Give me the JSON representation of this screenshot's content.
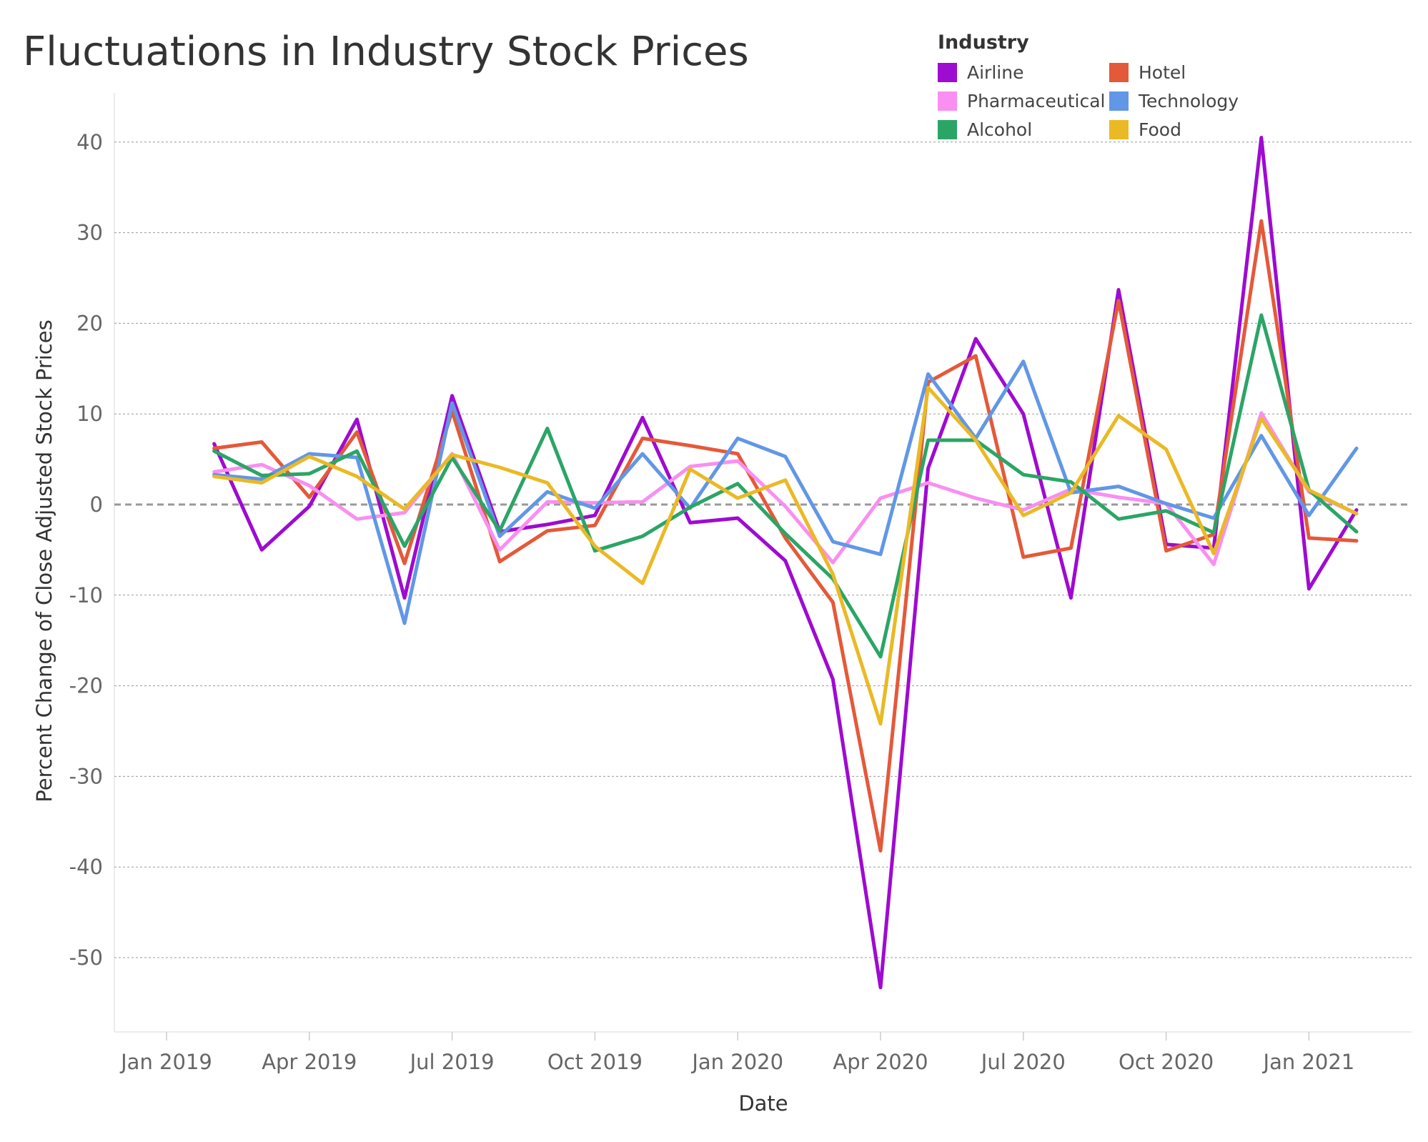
{
  "chart_data": {
    "type": "line",
    "title": "Fluctuations in Industry Stock Prices",
    "xlabel": "Date",
    "ylabel": "Percent Change of Close Adjusted Stock Prices",
    "ylim": [
      -58,
      46
    ],
    "yticks": [
      40,
      30,
      20,
      10,
      0,
      -10,
      -20,
      -30,
      -40,
      -50
    ],
    "x_ticks": [
      "Jan 2019",
      "Apr 2019",
      "Jul 2019",
      "Oct 2019",
      "Jan 2020",
      "Apr 2020",
      "Jul 2020",
      "Oct 2020",
      "Jan 2021"
    ],
    "x": [
      "2019-02",
      "2019-03",
      "2019-04",
      "2019-05",
      "2019-06",
      "2019-07",
      "2019-08",
      "2019-09",
      "2019-10",
      "2019-11",
      "2019-12",
      "2020-01",
      "2020-02",
      "2020-03",
      "2020-04",
      "2020-05",
      "2020-06",
      "2020-07",
      "2020-08",
      "2020-09",
      "2020-10",
      "2020-11",
      "2020-12",
      "2021-01",
      "2021-02"
    ],
    "legend_title": "Industry",
    "legend_position": "top-right",
    "grid": true,
    "zero_line": true,
    "series": [
      {
        "name": "Airline",
        "color": "#9e0bd1",
        "values": [
          6.7,
          -5.0,
          -0.2,
          9.4,
          -10.3,
          12.0,
          -3.0,
          -2.2,
          -1.2,
          9.6,
          -2.0,
          -1.5,
          -6.2,
          -19.3,
          -53.3,
          4.0,
          18.3,
          10.0,
          -10.3,
          23.7,
          -4.4,
          -4.8,
          40.5,
          -9.3,
          -0.6
        ]
      },
      {
        "name": "Hotel",
        "color": "#e4593a",
        "values": [
          6.2,
          6.9,
          0.8,
          8.0,
          -6.5,
          10.3,
          -6.3,
          -2.9,
          -2.3,
          7.3,
          6.5,
          5.6,
          -3.7,
          -10.8,
          -38.2,
          13.5,
          16.4,
          -5.8,
          -4.8,
          22.5,
          -5.1,
          -3.3,
          31.3,
          -3.7,
          -4.0
        ]
      },
      {
        "name": "Pharmaceutical",
        "color": "#f98ff0",
        "values": [
          3.6,
          4.4,
          2.1,
          -1.6,
          -0.9,
          5.6,
          -5.0,
          0.3,
          0.2,
          0.3,
          4.2,
          4.8,
          -0.2,
          -6.4,
          0.7,
          2.4,
          0.7,
          -0.6,
          1.7,
          0.8,
          0.1,
          -6.6,
          10.1,
          1.4,
          -1.0
        ]
      },
      {
        "name": "Technology",
        "color": "#6197e6",
        "values": [
          3.3,
          2.8,
          5.6,
          5.2,
          -13.1,
          11.2,
          -3.5,
          1.4,
          -0.4,
          5.6,
          -0.4,
          7.3,
          5.3,
          -4.1,
          -5.5,
          14.4,
          7.3,
          15.8,
          1.3,
          2.0,
          0.1,
          -1.5,
          7.6,
          -1.2,
          6.2
        ]
      },
      {
        "name": "Alcohol",
        "color": "#2ba566",
        "values": [
          5.9,
          3.2,
          3.4,
          5.9,
          -4.6,
          5.2,
          -2.9,
          8.4,
          -5.1,
          -3.5,
          -0.3,
          2.3,
          -3.2,
          -8.2,
          -16.8,
          7.1,
          7.1,
          3.3,
          2.5,
          -1.6,
          -0.7,
          -3.1,
          20.9,
          1.6,
          -3.0
        ]
      },
      {
        "name": "Food",
        "color": "#eab925",
        "values": [
          3.1,
          2.4,
          5.3,
          3.1,
          -0.5,
          5.5,
          4.1,
          2.4,
          -4.6,
          -8.7,
          3.9,
          0.7,
          2.7,
          -7.7,
          -24.2,
          12.9,
          7.1,
          -1.2,
          1.3,
          9.8,
          6.1,
          -5.4,
          9.5,
          1.6,
          -1.0
        ]
      }
    ]
  }
}
